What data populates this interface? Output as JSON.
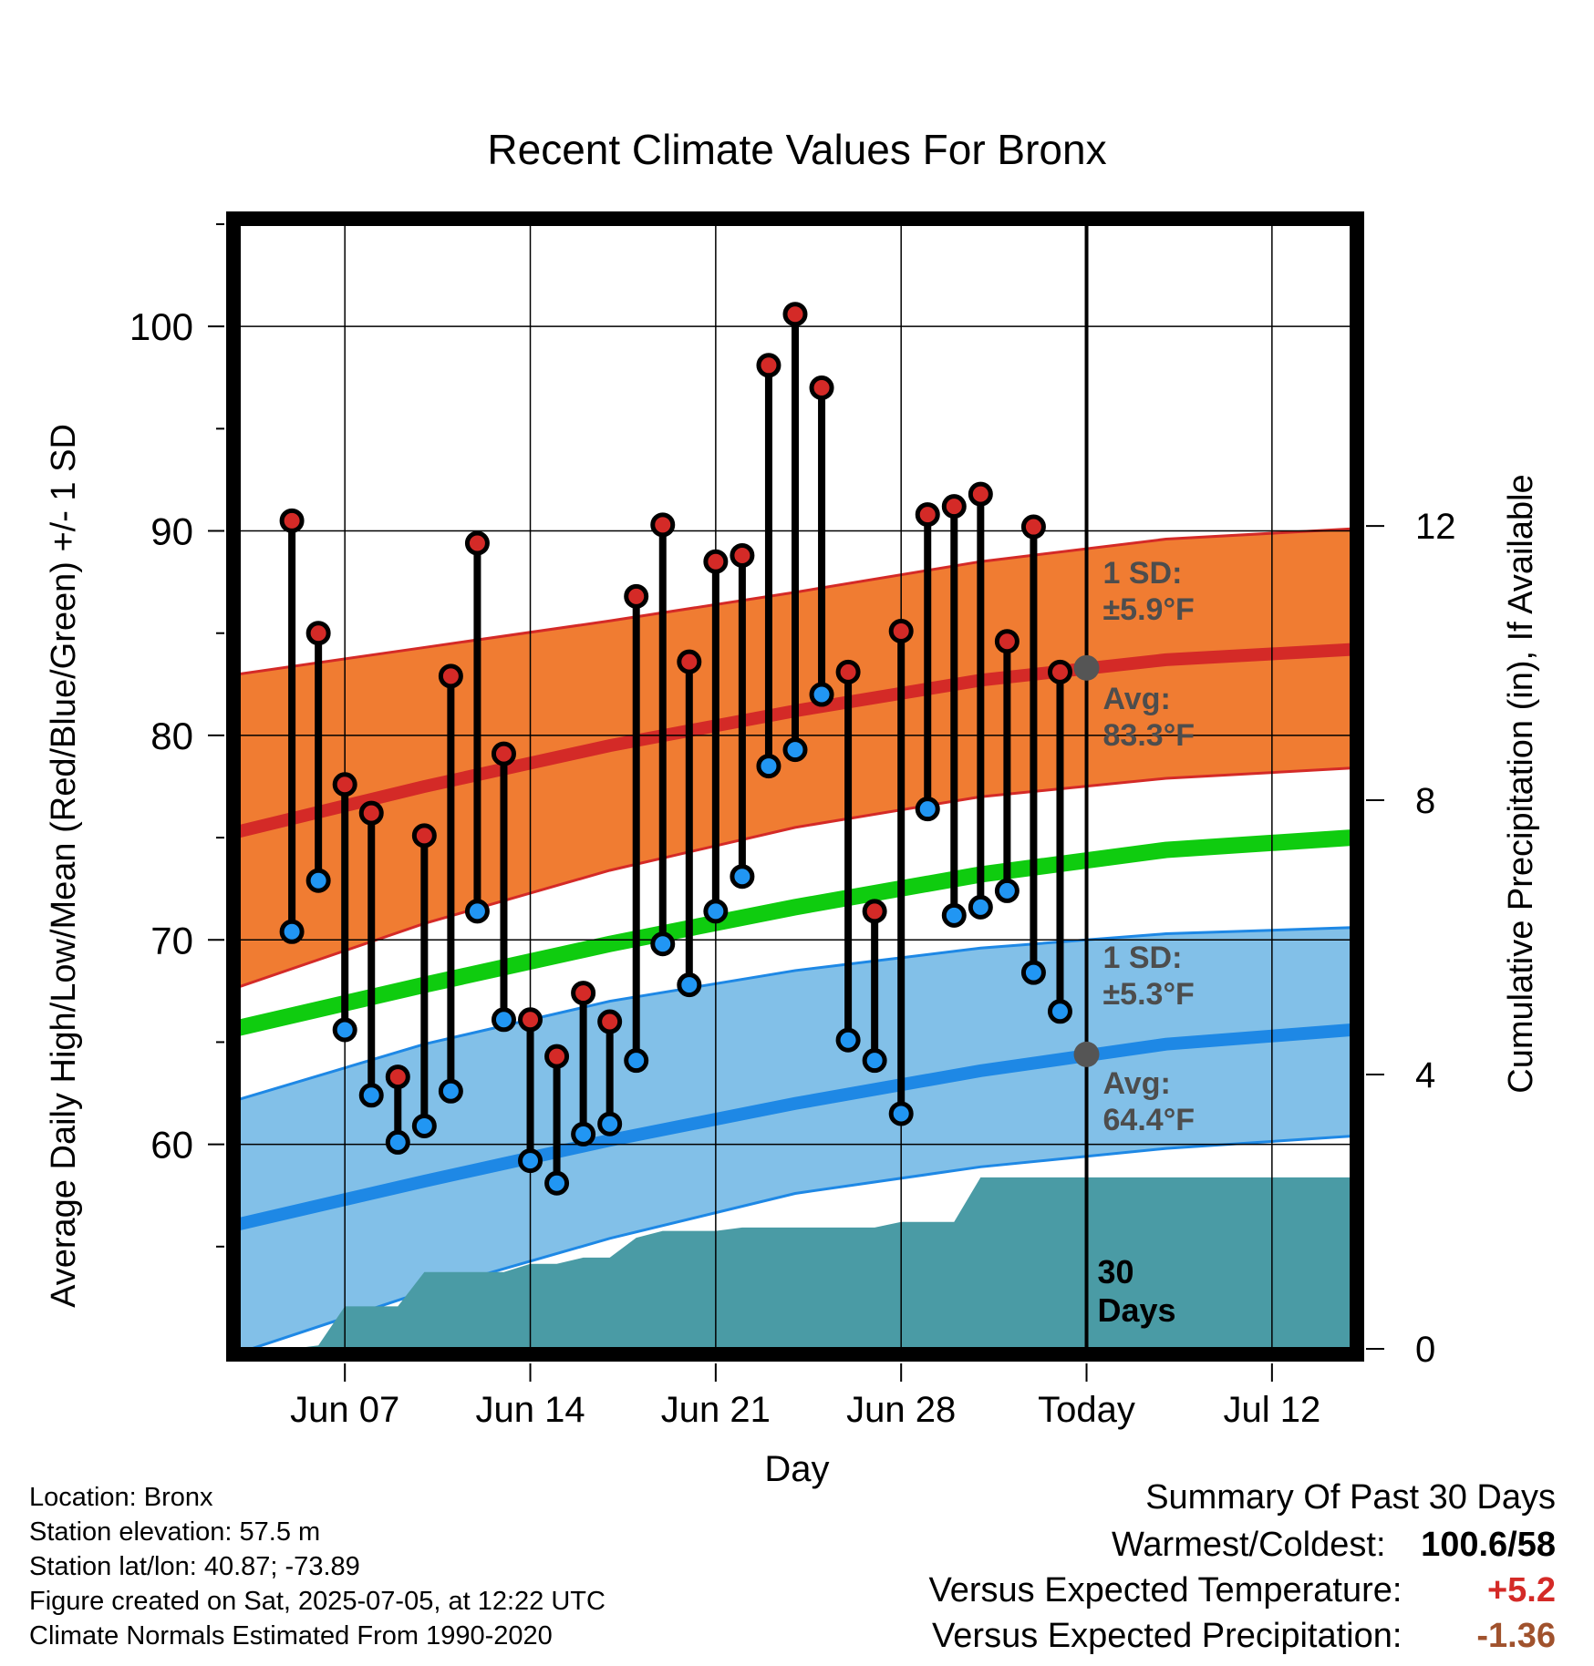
{
  "chart_data": {
    "type": "line",
    "title": "Recent Climate Values For Bronx",
    "xlabel": "Day",
    "ylabel": "Average Daily High/Low/Mean (Red/Blue/Green) +/- 1 SD",
    "y2label": "Cumulative Precipitation (in), If Available",
    "ylim": [
      50,
      105
    ],
    "y_ticks": [
      60,
      70,
      80,
      90,
      100
    ],
    "y2lim": [
      0,
      16.4
    ],
    "y2_ticks": [
      0,
      4,
      8,
      12
    ],
    "xlim": [
      "2025-06-03",
      "2025-07-15"
    ],
    "x_ticks": [
      {
        "date": "2025-06-07",
        "label": "Jun 07"
      },
      {
        "date": "2025-06-14",
        "label": "Jun 14"
      },
      {
        "date": "2025-06-21",
        "label": "Jun 21"
      },
      {
        "date": "2025-06-28",
        "label": "Jun 28"
      },
      {
        "date": "2025-07-05",
        "label": "Today"
      },
      {
        "date": "2025-07-12",
        "label": "Jul 12"
      }
    ],
    "grid": true,
    "today": "2025-07-05",
    "window_label_1": "30",
    "window_label_2": "Days",
    "dates": [
      "2025-06-05",
      "2025-06-06",
      "2025-06-07",
      "2025-06-08",
      "2025-06-09",
      "2025-06-10",
      "2025-06-11",
      "2025-06-12",
      "2025-06-13",
      "2025-06-14",
      "2025-06-15",
      "2025-06-16",
      "2025-06-17",
      "2025-06-18",
      "2025-06-19",
      "2025-06-20",
      "2025-06-21",
      "2025-06-22",
      "2025-06-23",
      "2025-06-24",
      "2025-06-25",
      "2025-06-26",
      "2025-06-27",
      "2025-06-28",
      "2025-06-29",
      "2025-06-30",
      "2025-07-01",
      "2025-07-02",
      "2025-07-03",
      "2025-07-04"
    ],
    "series": [
      {
        "name": "High",
        "color": "#d42a27",
        "values": [
          90.5,
          85.0,
          77.6,
          76.2,
          63.3,
          75.1,
          82.9,
          89.4,
          79.1,
          66.1,
          64.3,
          67.4,
          66.0,
          86.8,
          90.3,
          83.6,
          88.5,
          88.8,
          98.1,
          100.6,
          97.0,
          83.1,
          71.4,
          85.1,
          90.8,
          91.2,
          91.8,
          84.6,
          90.2,
          83.1
        ]
      },
      {
        "name": "Low",
        "color": "#2196f3",
        "values": [
          70.4,
          72.9,
          65.6,
          62.4,
          60.1,
          60.9,
          62.6,
          71.4,
          66.1,
          59.2,
          58.1,
          60.5,
          61.0,
          64.1,
          69.8,
          67.8,
          71.4,
          73.1,
          78.5,
          79.3,
          82.0,
          65.1,
          64.1,
          61.5,
          76.4,
          71.2,
          71.6,
          72.4,
          68.4,
          66.5
        ]
      }
    ],
    "normals": {
      "dates": [
        "2025-06-03",
        "2025-06-10",
        "2025-06-17",
        "2025-06-24",
        "2025-07-01",
        "2025-07-08",
        "2025-07-15"
      ],
      "high_mean": [
        75.3,
        77.5,
        79.5,
        81.2,
        82.7,
        83.7,
        84.2
      ],
      "high_sd_upper": [
        83.0,
        84.3,
        85.6,
        87.0,
        88.5,
        89.6,
        90.1
      ],
      "high_sd_lower": [
        67.7,
        70.8,
        73.4,
        75.5,
        77.0,
        77.9,
        78.4
      ],
      "mean": [
        65.7,
        67.8,
        69.8,
        71.6,
        73.2,
        74.4,
        75.0
      ],
      "low_mean": [
        56.1,
        58.2,
        60.2,
        62.0,
        63.6,
        64.9,
        65.6
      ],
      "low_sd_upper": [
        62.2,
        64.9,
        67.0,
        68.5,
        69.6,
        70.3,
        70.6
      ],
      "low_sd_lower": [
        49.8,
        52.8,
        55.4,
        57.6,
        58.9,
        59.8,
        60.4
      ],
      "high_color": "#f07c32",
      "low_color": "#82c0e8",
      "mean_color": "#0fcc0f"
    },
    "precipitation": {
      "color": "#4a9ba5",
      "dates": [
        "2025-06-04",
        "2025-06-05",
        "2025-06-06",
        "2025-06-07",
        "2025-06-08",
        "2025-06-09",
        "2025-06-10",
        "2025-06-11",
        "2025-06-12",
        "2025-06-13",
        "2025-06-14",
        "2025-06-15",
        "2025-06-16",
        "2025-06-17",
        "2025-06-18",
        "2025-06-19",
        "2025-06-20",
        "2025-06-21",
        "2025-06-22",
        "2025-06-23",
        "2025-06-24",
        "2025-06-25",
        "2025-06-26",
        "2025-06-27",
        "2025-06-28",
        "2025-06-29",
        "2025-06-30",
        "2025-07-01",
        "2025-07-02",
        "2025-07-03",
        "2025-07-04",
        "2025-07-05",
        "2025-07-15"
      ],
      "values": [
        0,
        0,
        0.05,
        0.62,
        0.62,
        0.62,
        1.12,
        1.12,
        1.12,
        1.12,
        1.24,
        1.24,
        1.33,
        1.33,
        1.62,
        1.72,
        1.72,
        1.72,
        1.77,
        1.77,
        1.77,
        1.77,
        1.77,
        1.77,
        1.85,
        1.85,
        1.85,
        2.5,
        2.5,
        2.5,
        2.5,
        2.5,
        2.5
      ]
    },
    "annotations": {
      "high_sd_label_1": "1 SD:",
      "high_sd_label_2": "±5.9°F",
      "high_avg_label_1": "Avg:",
      "high_avg_label_2": "83.3°F",
      "low_sd_label_1": "1 SD:",
      "low_sd_label_2": "±5.3°F",
      "low_avg_label_1": "Avg:",
      "low_avg_label_2": "64.4°F",
      "high_avg_today": 83.3,
      "low_avg_today": 64.4
    }
  },
  "info": {
    "location": "Location: Bronx",
    "elevation": "Station elevation: 57.5 m",
    "latlon": "Station lat/lon: 40.87; -73.89",
    "created": "Figure created on Sat, 2025-07-05, at 12:22 UTC",
    "normals": "Climate Normals Estimated From 1990-2020"
  },
  "summary": {
    "title": "Summary Of Past 30 Days",
    "warmest_label": "Warmest/Coldest:",
    "warmest_value": "100.6/58",
    "temp_label": "Versus Expected Temperature:",
    "temp_value": "+5.2",
    "temp_color": "#d42a27",
    "precip_label": "Versus Expected Precipitation:",
    "precip_value": "-1.36",
    "precip_color": "#a0522d"
  }
}
